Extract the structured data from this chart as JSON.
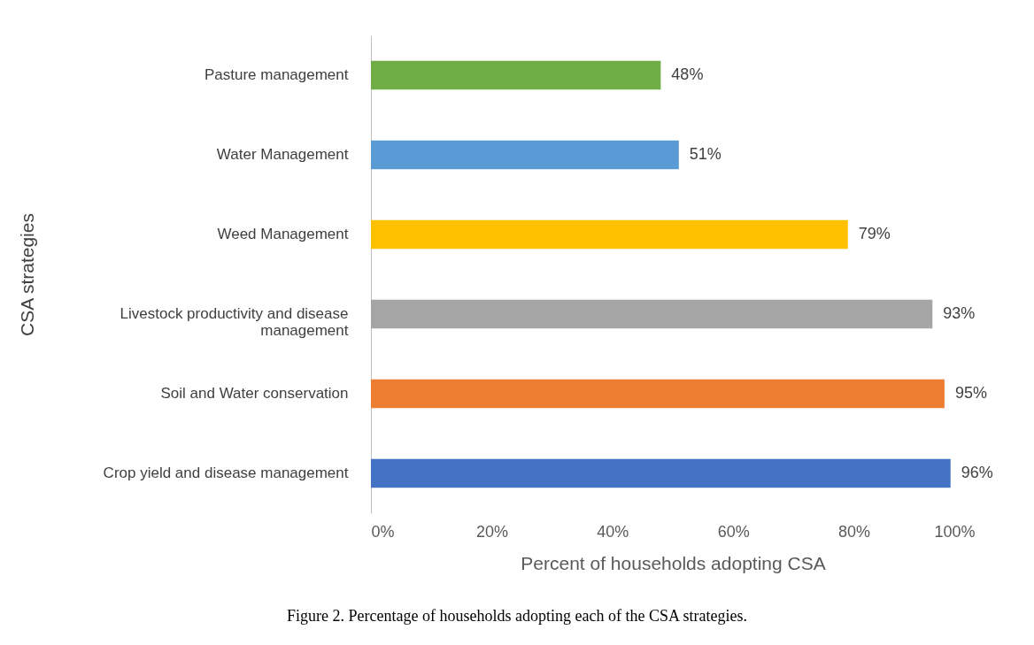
{
  "chart_data": {
    "type": "bar",
    "orientation": "horizontal",
    "categories": [
      "Pasture management",
      "Water Management",
      "Weed Management",
      "Livestock productivity and disease management",
      "Soil and Water conservation",
      "Crop yield and disease management"
    ],
    "values": [
      48,
      51,
      79,
      93,
      95,
      96
    ],
    "colors": [
      "#70ad47",
      "#5b9bd5",
      "#ffc000",
      "#a5a5a5",
      "#ed7d31",
      "#4472c4"
    ],
    "value_labels": [
      "48%",
      "51%",
      "79%",
      "93%",
      "95%",
      "96%"
    ],
    "xlim": [
      0,
      100
    ],
    "xticks": [
      {
        "value": 0,
        "label": "0%"
      },
      {
        "value": 20,
        "label": "20%"
      },
      {
        "value": 40,
        "label": "40%"
      },
      {
        "value": 60,
        "label": "60%"
      },
      {
        "value": 80,
        "label": "80%"
      },
      {
        "value": 100,
        "label": "100%"
      }
    ],
    "xlabel": "Percent of households adopting CSA",
    "ylabel": "CSA strategies",
    "grid": false,
    "annotations": [
      "Figure 2. Percentage of households adopting each of the CSA strategies."
    ]
  }
}
